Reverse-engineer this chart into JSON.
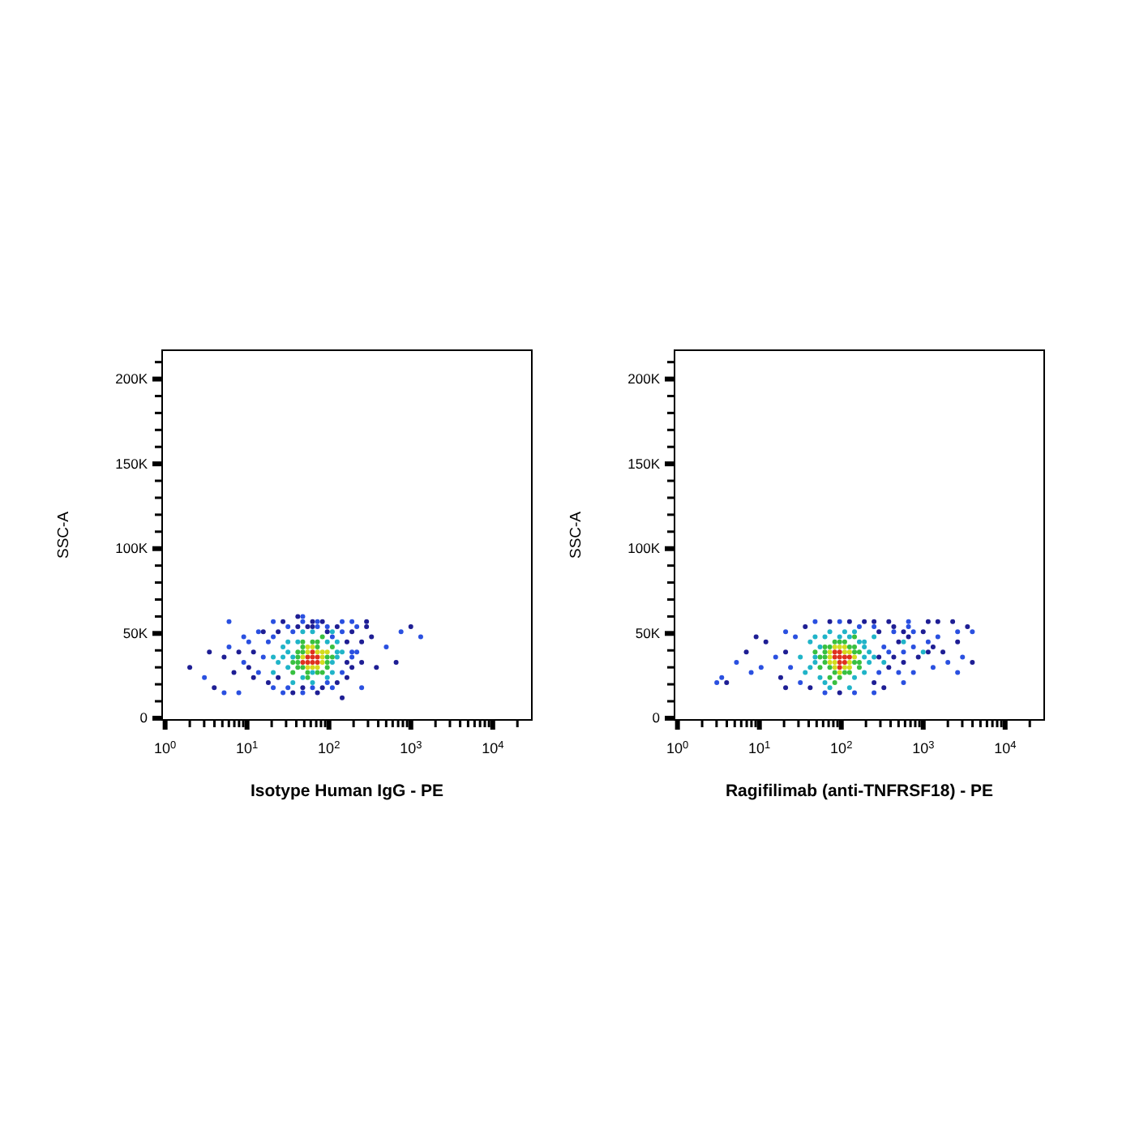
{
  "chart_data": [
    {
      "type": "scatter",
      "xlabel": "Isotype Human IgG - PE",
      "ylabel": "SSC-A",
      "log": "x",
      "marker": "circle",
      "xlim": [
        0.92,
        30000
      ],
      "ylim": [
        -1000,
        217000
      ],
      "xticks": [
        {
          "value": 1,
          "label": "10$^{0}$"
        },
        {
          "value": 2,
          "label": null
        },
        {
          "value": 3,
          "label": null
        },
        {
          "value": 4,
          "label": null
        },
        {
          "value": 5,
          "label": null
        },
        {
          "value": 6,
          "label": null
        },
        {
          "value": 7,
          "label": null
        },
        {
          "value": 8,
          "label": null
        },
        {
          "value": 9,
          "label": null
        },
        {
          "value": 10,
          "label": "10$^{1}$"
        },
        {
          "value": 20,
          "label": null
        },
        {
          "value": 30,
          "label": null
        },
        {
          "value": 40,
          "label": null
        },
        {
          "value": 50,
          "label": null
        },
        {
          "value": 60,
          "label": null
        },
        {
          "value": 70,
          "label": null
        },
        {
          "value": 80,
          "label": null
        },
        {
          "value": 90,
          "label": null
        },
        {
          "value": 100,
          "label": "10$^{2}$"
        },
        {
          "value": 200,
          "label": null
        },
        {
          "value": 300,
          "label": null
        },
        {
          "value": 400,
          "label": null
        },
        {
          "value": 500,
          "label": null
        },
        {
          "value": 600,
          "label": null
        },
        {
          "value": 700,
          "label": null
        },
        {
          "value": 800,
          "label": null
        },
        {
          "value": 900,
          "label": null
        },
        {
          "value": 1000,
          "label": "10$^{3}$"
        },
        {
          "value": 2000,
          "label": null
        },
        {
          "value": 3000,
          "label": null
        },
        {
          "value": 4000,
          "label": null
        },
        {
          "value": 5000,
          "label": null
        },
        {
          "value": 6000,
          "label": null
        },
        {
          "value": 7000,
          "label": null
        },
        {
          "value": 8000,
          "label": null
        },
        {
          "value": 9000,
          "label": null
        },
        {
          "value": 10000,
          "label": "10$^{4}$"
        },
        {
          "value": 20000,
          "label": null
        }
      ],
      "yticks": [
        0,
        {
          "value": 10000,
          "label": null
        },
        {
          "value": 20000,
          "label": null
        },
        {
          "value": 30000,
          "label": null
        },
        {
          "value": 40000,
          "label": null
        },
        {
          "value": 50000,
          "label": "50K"
        },
        {
          "value": 60000,
          "label": null
        },
        {
          "value": 70000,
          "label": null
        },
        {
          "value": 80000,
          "label": null
        },
        {
          "value": 90000,
          "label": null
        },
        {
          "value": 100000,
          "label": "100K"
        },
        {
          "value": 110000,
          "label": null
        },
        {
          "value": 120000,
          "label": null
        },
        {
          "value": 130000,
          "label": null
        },
        {
          "value": 140000,
          "label": null
        },
        {
          "value": 150000,
          "label": "150K"
        },
        {
          "value": 160000,
          "label": null
        },
        {
          "value": 170000,
          "label": null
        },
        {
          "value": 180000,
          "label": null
        },
        {
          "value": 190000,
          "label": null
        },
        {
          "value": 200000,
          "label": "200K"
        },
        {
          "value": 210000,
          "label": null
        }
      ],
      "x": [
        55,
        63.1,
        72.4,
        63.1,
        72.4,
        47.9,
        63.1,
        55,
        47.9,
        83.2,
        63.1,
        72.4,
        83.2,
        55,
        55,
        95.5,
        72.4,
        55,
        83.2,
        63.1,
        95.5,
        36.3,
        41.7,
        41.7,
        95.5,
        72.4,
        47.9,
        110,
        83.2,
        55,
        36.3,
        83.2,
        41.7,
        41.7,
        47.9,
        72.4,
        95.5,
        55,
        72.4,
        47.9,
        47.9,
        110,
        63.1,
        31.6,
        24,
        27.5,
        31.6,
        20.9,
        126,
        126,
        110,
        63.1,
        47.9,
        36.3,
        63.1,
        95.5,
        145,
        20.9,
        110,
        36.3,
        27.5,
        31.6,
        110,
        126,
        95.5,
        41.7,
        63.1,
        47.9,
        15.8,
        12,
        18.2,
        10.5,
        13.8,
        18.2,
        20.9,
        24,
        31.6,
        41.7,
        47.9,
        63.1,
        72.4,
        83.2,
        95.5,
        126,
        145,
        166,
        191,
        166,
        145,
        126,
        95.5,
        83.2,
        63.1,
        47.9,
        31.6,
        24,
        20.9,
        12,
        9.12,
        7.94,
        10.5,
        15.8,
        36.3,
        55,
        72.4,
        95.5,
        110,
        191,
        219,
        251,
        191,
        166,
        110,
        72.4,
        47.9,
        36.3,
        27.5,
        6.92,
        6.03,
        5.25,
        9.12,
        191,
        219,
        251,
        191,
        288,
        145,
        63.1,
        47.9,
        27.5,
        13.8,
        2,
        3.02,
        3.98,
        6.03,
        288,
        759,
        1000,
        1320,
        661,
        501,
        3.47,
        5.25,
        380,
        251,
        145,
        7.94,
        331,
        20.9,
        41.7
      ],
      "values": [
        36000,
        33000,
        36000,
        39000,
        33000,
        33000,
        36000,
        33000,
        36000,
        39000,
        42000,
        30000,
        33000,
        30000,
        42000,
        39000,
        39000,
        39000,
        36000,
        30000,
        36000,
        33000,
        39000,
        30000,
        30000,
        45000,
        45000,
        42000,
        27000,
        24000,
        27000,
        48000,
        36000,
        33000,
        42000,
        42000,
        33000,
        27000,
        27000,
        39000,
        30000,
        36000,
        45000,
        39000,
        33000,
        42000,
        45000,
        36000,
        36000,
        45000,
        51000,
        51000,
        51000,
        21000,
        21000,
        24000,
        39000,
        27000,
        27000,
        36000,
        36000,
        30000,
        33000,
        39000,
        45000,
        45000,
        27000,
        24000,
        36000,
        39000,
        45000,
        30000,
        27000,
        21000,
        48000,
        51000,
        54000,
        54000,
        57000,
        54000,
        57000,
        57000,
        54000,
        54000,
        51000,
        45000,
        39000,
        33000,
        27000,
        21000,
        21000,
        18000,
        18000,
        18000,
        18000,
        24000,
        18000,
        24000,
        33000,
        39000,
        45000,
        51000,
        51000,
        54000,
        54000,
        51000,
        48000,
        51000,
        54000,
        45000,
        36000,
        24000,
        18000,
        15000,
        15000,
        15000,
        15000,
        27000,
        42000,
        36000,
        48000,
        30000,
        39000,
        33000,
        57000,
        57000,
        57000,
        57000,
        60000,
        57000,
        51000,
        30000,
        24000,
        18000,
        57000,
        54000,
        51000,
        54000,
        48000,
        33000,
        42000,
        39000,
        15000,
        30000,
        18000,
        12000,
        15000,
        48000,
        57000,
        60000
      ],
      "colors": [
        "#e0301e",
        "#e0301e",
        "#e0301e",
        "#e0301e",
        "#e0301e",
        "#e0301e",
        "#e0301e",
        "#e0301e",
        "#d4dc1e",
        "#d4dc1e",
        "#d4dc1e",
        "#d4dc1e",
        "#d4dc1e",
        "#d4dc1e",
        "#d4dc1e",
        "#d4dc1e",
        "#d4dc1e",
        "#d4dc1e",
        "#d4dc1e",
        "#d4dc1e",
        "#38c040",
        "#38c040",
        "#38c040",
        "#38c040",
        "#38c040",
        "#38c040",
        "#38c040",
        "#38c040",
        "#38c040",
        "#38c040",
        "#38c040",
        "#38c040",
        "#38c040",
        "#38c040",
        "#38c040",
        "#38c040",
        "#38c040",
        "#38c040",
        "#38c040",
        "#38c040",
        "#38c040",
        "#38c040",
        "#38c040",
        "#20b4c8",
        "#20b4c8",
        "#20b4c8",
        "#20b4c8",
        "#20b4c8",
        "#20b4c8",
        "#20b4c8",
        "#20b4c8",
        "#20b4c8",
        "#20b4c8",
        "#20b4c8",
        "#20b4c8",
        "#20b4c8",
        "#20b4c8",
        "#20b4c8",
        "#20b4c8",
        "#20b4c8",
        "#20b4c8",
        "#20b4c8",
        "#20b4c8",
        "#20b4c8",
        "#20b4c8",
        "#20b4c8",
        "#20b4c8",
        "#20b4c8",
        "#2a50e0",
        "#1e1e94",
        "#2a50e0",
        "#1e1e94",
        "#2a50e0",
        "#1e1e94",
        "#2a50e0",
        "#1e1e94",
        "#2a50e0",
        "#1e1e94",
        "#2a50e0",
        "#1e1e94",
        "#2a50e0",
        "#1e1e94",
        "#2a50e0",
        "#1e1e94",
        "#2a50e0",
        "#1e1e94",
        "#2a50e0",
        "#1e1e94",
        "#2a50e0",
        "#1e1e94",
        "#2a50e0",
        "#1e1e94",
        "#2a50e0",
        "#1e1e94",
        "#2a50e0",
        "#1e1e94",
        "#2a50e0",
        "#1e1e94",
        "#2a50e0",
        "#1e1e94",
        "#2a50e0",
        "#1e1e94",
        "#2a50e0",
        "#1e1e94",
        "#2a50e0",
        "#1e1e94",
        "#2a50e0",
        "#1e1e94",
        "#2a50e0",
        "#1e1e94",
        "#2a50e0",
        "#1e1e94",
        "#2a50e0",
        "#1e1e94",
        "#2a50e0",
        "#1e1e94",
        "#2a50e0",
        "#1e1e94",
        "#2a50e0",
        "#1e1e94",
        "#2a50e0",
        "#1e1e94",
        "#2a50e0",
        "#1e1e94",
        "#2a50e0",
        "#1e1e94",
        "#2a50e0",
        "#1e1e94",
        "#2a50e0",
        "#1e1e94",
        "#2a50e0",
        "#1e1e94",
        "#2a50e0",
        "#1e1e94",
        "#2a50e0",
        "#1e1e94",
        "#2a50e0",
        "#1e1e94",
        "#2a50e0",
        "#1e1e94",
        "#2a50e0",
        "#1e1e94",
        "#2a50e0",
        "#1e1e94",
        "#2a50e0",
        "#1e1e94",
        "#2a50e0",
        "#1e1e94",
        "#2a50e0",
        "#1e1e94"
      ]
    },
    {
      "type": "scatter",
      "xlabel": "Ragifilimab (anti-TNFRSF18) - PE",
      "ylabel": "SSC-A",
      "log": "x",
      "marker": "circle",
      "xlim": [
        0.92,
        30000
      ],
      "ylim": [
        -1000,
        217000
      ],
      "xticks": [
        {
          "value": 1,
          "label": "10$^{0}$"
        },
        {
          "value": 2,
          "label": null
        },
        {
          "value": 3,
          "label": null
        },
        {
          "value": 4,
          "label": null
        },
        {
          "value": 5,
          "label": null
        },
        {
          "value": 6,
          "label": null
        },
        {
          "value": 7,
          "label": null
        },
        {
          "value": 8,
          "label": null
        },
        {
          "value": 9,
          "label": null
        },
        {
          "value": 10,
          "label": "10$^{1}$"
        },
        {
          "value": 20,
          "label": null
        },
        {
          "value": 30,
          "label": null
        },
        {
          "value": 40,
          "label": null
        },
        {
          "value": 50,
          "label": null
        },
        {
          "value": 60,
          "label": null
        },
        {
          "value": 70,
          "label": null
        },
        {
          "value": 80,
          "label": null
        },
        {
          "value": 90,
          "label": null
        },
        {
          "value": 100,
          "label": "10$^{2}$"
        },
        {
          "value": 200,
          "label": null
        },
        {
          "value": 300,
          "label": null
        },
        {
          "value": 400,
          "label": null
        },
        {
          "value": 500,
          "label": null
        },
        {
          "value": 600,
          "label": null
        },
        {
          "value": 700,
          "label": null
        },
        {
          "value": 800,
          "label": null
        },
        {
          "value": 900,
          "label": null
        },
        {
          "value": 1000,
          "label": "10$^{3}$"
        },
        {
          "value": 2000,
          "label": null
        },
        {
          "value": 3000,
          "label": null
        },
        {
          "value": 4000,
          "label": null
        },
        {
          "value": 5000,
          "label": null
        },
        {
          "value": 6000,
          "label": null
        },
        {
          "value": 7000,
          "label": null
        },
        {
          "value": 8000,
          "label": null
        },
        {
          "value": 9000,
          "label": null
        },
        {
          "value": 10000,
          "label": "10$^{4}$"
        },
        {
          "value": 20000,
          "label": null
        }
      ],
      "yticks": [
        0,
        {
          "value": 10000,
          "label": null
        },
        {
          "value": 20000,
          "label": null
        },
        {
          "value": 30000,
          "label": null
        },
        {
          "value": 40000,
          "label": null
        },
        {
          "value": 50000,
          "label": "50K"
        },
        {
          "value": 60000,
          "label": null
        },
        {
          "value": 70000,
          "label": null
        },
        {
          "value": 80000,
          "label": null
        },
        {
          "value": 90000,
          "label": null
        },
        {
          "value": 100000,
          "label": "100K"
        },
        {
          "value": 110000,
          "label": null
        },
        {
          "value": 120000,
          "label": null
        },
        {
          "value": 130000,
          "label": null
        },
        {
          "value": 140000,
          "label": null
        },
        {
          "value": 150000,
          "label": "150K"
        },
        {
          "value": 160000,
          "label": null
        },
        {
          "value": 170000,
          "label": null
        },
        {
          "value": 180000,
          "label": null
        },
        {
          "value": 190000,
          "label": null
        },
        {
          "value": 200000,
          "label": "200K"
        },
        {
          "value": 210000,
          "label": null
        }
      ],
      "x": [
        95.5,
        110,
        95.5,
        126,
        83.2,
        95.5,
        110,
        95.5,
        83.2,
        72.4,
        126,
        110,
        83.2,
        126,
        72.4,
        95.5,
        126,
        83.2,
        110,
        83.2,
        145,
        95.5,
        110,
        72.4,
        63.1,
        63.1,
        55,
        145,
        145,
        95.5,
        110,
        72.4,
        166,
        47.9,
        145,
        83.2,
        166,
        72.4,
        63.1,
        145,
        126,
        83.2,
        110,
        55,
        63.1,
        166,
        126,
        83.2,
        95.5,
        72.4,
        47.9,
        41.7,
        47.9,
        36.3,
        191,
        191,
        145,
        72.4,
        191,
        110,
        63.1,
        31.6,
        219,
        251,
        126,
        55,
        47.9,
        41.7,
        219,
        191,
        166,
        126,
        95.5,
        63.1,
        55,
        145,
        72.4,
        251,
        24,
        20.9,
        27.5,
        18.2,
        15.8,
        12,
        10.5,
        9.12,
        20.9,
        36.3,
        47.9,
        72.4,
        95.5,
        126,
        166,
        191,
        251,
        288,
        331,
        288,
        288,
        251,
        145,
        95.5,
        63.1,
        41.7,
        31.6,
        20.9,
        7.94,
        6.92,
        5.25,
        3.98,
        3.47,
        380,
        437,
        501,
        575,
        575,
        501,
        380,
        380,
        437,
        661,
        661,
        759,
        871,
        759,
        1000,
        1150,
        1150,
        1320,
        1510,
        1510,
        1740,
        2000,
        2290,
        2630,
        2630,
        3020,
        3470,
        3980,
        3980,
        575,
        331,
        251,
        1150,
        661,
        575,
        2630,
        437,
        759,
        1320,
        3.02,
        251,
        575,
        331,
        1000
      ],
      "values": [
        36000,
        36000,
        33000,
        36000,
        39000,
        30000,
        33000,
        39000,
        36000,
        33000,
        33000,
        39000,
        30000,
        39000,
        39000,
        42000,
        30000,
        33000,
        42000,
        42000,
        36000,
        27000,
        30000,
        36000,
        36000,
        42000,
        30000,
        42000,
        33000,
        45000,
        27000,
        24000,
        30000,
        39000,
        48000,
        21000,
        39000,
        30000,
        33000,
        39000,
        42000,
        45000,
        45000,
        36000,
        39000,
        33000,
        27000,
        27000,
        24000,
        42000,
        33000,
        45000,
        48000,
        27000,
        45000,
        36000,
        51000,
        51000,
        27000,
        51000,
        21000,
        36000,
        39000,
        48000,
        18000,
        42000,
        36000,
        30000,
        33000,
        42000,
        45000,
        48000,
        48000,
        48000,
        24000,
        24000,
        18000,
        36000,
        30000,
        39000,
        48000,
        24000,
        36000,
        45000,
        30000,
        48000,
        51000,
        54000,
        57000,
        57000,
        57000,
        57000,
        54000,
        57000,
        54000,
        51000,
        42000,
        36000,
        27000,
        21000,
        15000,
        15000,
        15000,
        18000,
        21000,
        18000,
        27000,
        39000,
        33000,
        21000,
        24000,
        57000,
        51000,
        45000,
        39000,
        33000,
        27000,
        30000,
        39000,
        54000,
        54000,
        48000,
        42000,
        36000,
        27000,
        51000,
        45000,
        39000,
        30000,
        57000,
        48000,
        39000,
        33000,
        57000,
        51000,
        45000,
        36000,
        54000,
        51000,
        33000,
        21000,
        18000,
        15000,
        57000,
        57000,
        51000,
        27000,
        36000,
        51000,
        42000,
        21000,
        57000,
        45000,
        33000,
        39000
      ],
      "colors": [
        "#e0301e",
        "#e0301e",
        "#e0301e",
        "#e0301e",
        "#e0301e",
        "#e0301e",
        "#e0301e",
        "#e0301e",
        "#e0301e",
        "#d4dc1e",
        "#d4dc1e",
        "#d4dc1e",
        "#d4dc1e",
        "#d4dc1e",
        "#d4dc1e",
        "#d4dc1e",
        "#d4dc1e",
        "#d4dc1e",
        "#d4dc1e",
        "#d4dc1e",
        "#d4dc1e",
        "#d4dc1e",
        "#d4dc1e",
        "#d4dc1e",
        "#38c040",
        "#38c040",
        "#38c040",
        "#38c040",
        "#38c040",
        "#38c040",
        "#38c040",
        "#38c040",
        "#38c040",
        "#38c040",
        "#38c040",
        "#38c040",
        "#38c040",
        "#38c040",
        "#38c040",
        "#38c040",
        "#38c040",
        "#38c040",
        "#38c040",
        "#38c040",
        "#38c040",
        "#38c040",
        "#38c040",
        "#38c040",
        "#38c040",
        "#38c040",
        "#20b4c8",
        "#20b4c8",
        "#20b4c8",
        "#20b4c8",
        "#20b4c8",
        "#20b4c8",
        "#20b4c8",
        "#20b4c8",
        "#20b4c8",
        "#20b4c8",
        "#20b4c8",
        "#20b4c8",
        "#20b4c8",
        "#20b4c8",
        "#20b4c8",
        "#20b4c8",
        "#20b4c8",
        "#20b4c8",
        "#20b4c8",
        "#20b4c8",
        "#20b4c8",
        "#20b4c8",
        "#20b4c8",
        "#20b4c8",
        "#20b4c8",
        "#20b4c8",
        "#20b4c8",
        "#20b4c8",
        "#2a50e0",
        "#1e1e94",
        "#2a50e0",
        "#1e1e94",
        "#2a50e0",
        "#1e1e94",
        "#2a50e0",
        "#1e1e94",
        "#2a50e0",
        "#1e1e94",
        "#2a50e0",
        "#1e1e94",
        "#2a50e0",
        "#1e1e94",
        "#2a50e0",
        "#1e1e94",
        "#2a50e0",
        "#1e1e94",
        "#2a50e0",
        "#1e1e94",
        "#2a50e0",
        "#1e1e94",
        "#2a50e0",
        "#1e1e94",
        "#2a50e0",
        "#1e1e94",
        "#2a50e0",
        "#1e1e94",
        "#2a50e0",
        "#1e1e94",
        "#2a50e0",
        "#1e1e94",
        "#2a50e0",
        "#1e1e94",
        "#2a50e0",
        "#1e1e94",
        "#2a50e0",
        "#1e1e94",
        "#2a50e0",
        "#1e1e94",
        "#2a50e0",
        "#1e1e94",
        "#2a50e0",
        "#1e1e94",
        "#2a50e0",
        "#1e1e94",
        "#2a50e0",
        "#1e1e94",
        "#2a50e0",
        "#1e1e94",
        "#2a50e0",
        "#1e1e94",
        "#2a50e0",
        "#1e1e94",
        "#2a50e0",
        "#1e1e94",
        "#2a50e0",
        "#1e1e94",
        "#2a50e0",
        "#1e1e94",
        "#2a50e0",
        "#1e1e94",
        "#2a50e0",
        "#1e1e94",
        "#2a50e0",
        "#1e1e94",
        "#2a50e0",
        "#1e1e94",
        "#2a50e0",
        "#1e1e94",
        "#2a50e0",
        "#1e1e94",
        "#2a50e0",
        "#1e1e94",
        "#20b4c8",
        "#20b4c8",
        "#20b4c8"
      ]
    }
  ]
}
